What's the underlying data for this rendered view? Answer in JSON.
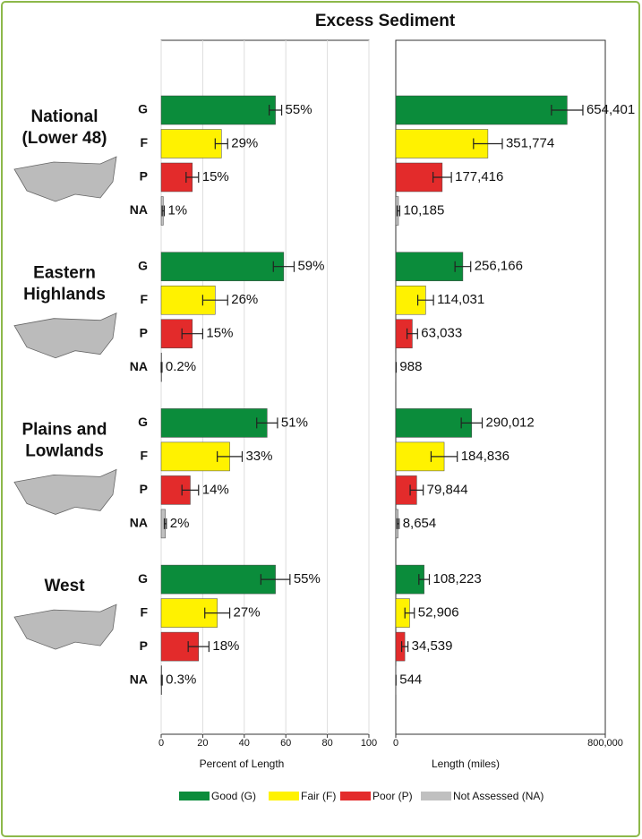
{
  "title": "Excess Sediment",
  "regions": [
    [
      "National",
      "(Lower 48)"
    ],
    [
      "Eastern",
      "Highlands"
    ],
    [
      "Plains and",
      "Lowlands"
    ],
    [
      "West"
    ]
  ],
  "bar_labels": [
    "G",
    "F",
    "P",
    "NA"
  ],
  "chart_data": [
    {
      "type": "bar",
      "orientation": "horizontal",
      "xlabel": "Percent of Length",
      "xlim": [
        0,
        100
      ],
      "xticks": [
        0,
        20,
        40,
        60,
        80,
        100
      ],
      "grid": true,
      "series": [
        {
          "name": "Good (G)",
          "color": "#0b8c3b",
          "values": [
            55,
            59,
            51,
            55
          ],
          "errors": [
            3,
            5,
            5,
            7
          ],
          "value_labels": [
            "55%",
            "59%",
            "51%",
            "55%"
          ]
        },
        {
          "name": "Fair (F)",
          "color": "#fff200",
          "values": [
            29,
            26,
            33,
            27
          ],
          "errors": [
            3,
            6,
            6,
            6
          ],
          "value_labels": [
            "29%",
            "26%",
            "33%",
            "27%"
          ]
        },
        {
          "name": "Poor (P)",
          "color": "#e32b2b",
          "values": [
            15,
            15,
            14,
            18
          ],
          "errors": [
            3,
            5,
            4,
            5
          ],
          "value_labels": [
            "15%",
            "15%",
            "14%",
            "18%"
          ]
        },
        {
          "name": "Not Assessed (NA)",
          "color": "#c0c0c0",
          "values": [
            1,
            0.2,
            2,
            0.3
          ],
          "errors": [
            0.5,
            0.2,
            0.5,
            0.2
          ],
          "value_labels": [
            "1%",
            "0.2%",
            "2%",
            "0.3%"
          ]
        }
      ]
    },
    {
      "type": "bar",
      "orientation": "horizontal",
      "xlabel": "Length (miles)",
      "xlim": [
        0,
        800000
      ],
      "xticks": [
        0,
        {
          "value": 800000,
          "label": "800,000"
        }
      ],
      "grid": false,
      "series": [
        {
          "color": "#0b8c3b",
          "values": [
            654401,
            256166,
            290012,
            108223
          ],
          "errors": [
            60000,
            30000,
            40000,
            20000
          ],
          "value_labels": [
            "654,401",
            "256,166",
            "290,012",
            "108,223"
          ]
        },
        {
          "color": "#fff200",
          "values": [
            351774,
            114031,
            184836,
            52906
          ],
          "errors": [
            55000,
            30000,
            50000,
            18000
          ],
          "value_labels": [
            "351,774",
            "114,031",
            "184,836",
            "52,906"
          ]
        },
        {
          "color": "#e32b2b",
          "values": [
            177416,
            63033,
            79844,
            34539
          ],
          "errors": [
            35000,
            20000,
            25000,
            12000
          ],
          "value_labels": [
            "177,416",
            "63,033",
            "79,844",
            "34,539"
          ]
        },
        {
          "color": "#c0c0c0",
          "values": [
            10185,
            988,
            8654,
            544
          ],
          "errors": [
            5000,
            500,
            4000,
            300
          ],
          "value_labels": [
            "10,185",
            "988",
            "8,654",
            "544"
          ]
        }
      ]
    }
  ]
}
